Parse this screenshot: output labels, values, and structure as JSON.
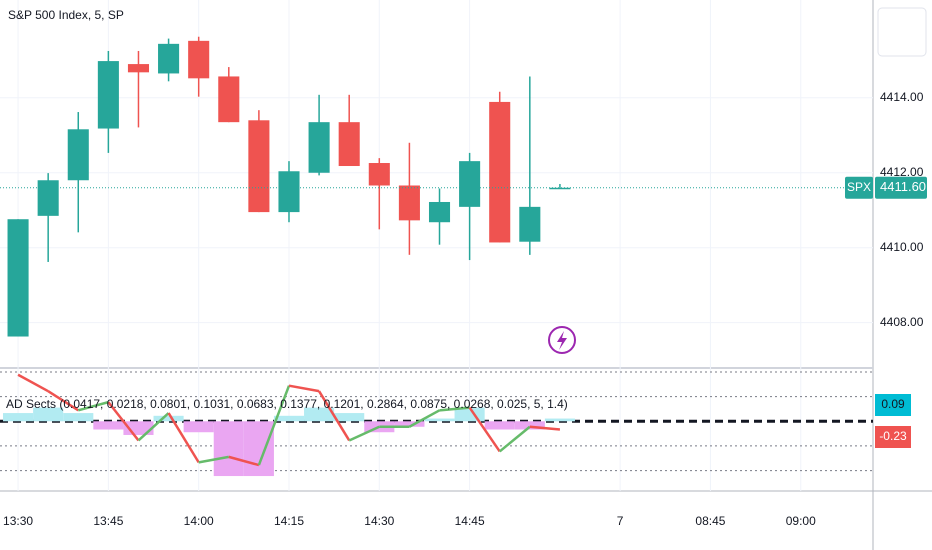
{
  "chart_data": {
    "type": "candlestick",
    "title": "S&P 500 Index, 5, SP",
    "symbol": "SPX",
    "last_price": {
      "value": 4411.6,
      "label": "4411.60"
    },
    "up_color": "#26a69a",
    "down_color": "#ef5350",
    "x": [
      0,
      1,
      2,
      3,
      4,
      5,
      6,
      7,
      8,
      9,
      10,
      11,
      12,
      13,
      14,
      15,
      16,
      17,
      18
    ],
    "open": [
      4407.63,
      4410.85,
      4411.8,
      4413.18,
      4414.9,
      4414.65,
      4415.52,
      4414.57,
      4413.4,
      4410.95,
      4412.0,
      4413.35,
      4412.26,
      4411.66,
      4410.68,
      4411.09,
      4413.89,
      4410.16,
      4411.6
    ],
    "high": [
      4410.76,
      4411.99,
      4413.62,
      4415.25,
      4415.25,
      4415.58,
      4415.63,
      4414.82,
      4413.67,
      4412.31,
      4414.08,
      4414.08,
      4412.39,
      4412.8,
      4411.58,
      4412.53,
      4414.16,
      4414.57,
      4411.7
    ],
    "low": [
      4407.63,
      4409.62,
      4410.41,
      4412.53,
      4413.21,
      4414.44,
      4414.03,
      4413.35,
      4410.95,
      4410.68,
      4411.93,
      4412.18,
      4410.49,
      4409.81,
      4410.08,
      4409.67,
      4410.14,
      4409.81,
      4411.6
    ],
    "close": [
      4410.76,
      4411.8,
      4413.16,
      4414.98,
      4414.68,
      4415.44,
      4414.52,
      4413.35,
      4410.95,
      4412.04,
      4413.35,
      4412.18,
      4411.66,
      4410.73,
      4411.22,
      4412.31,
      4410.14,
      4411.09,
      4411.6
    ],
    "xlim": [
      -0.6,
      28.4
    ],
    "xticks": [
      {
        "value": 0,
        "label": "13:30"
      },
      {
        "value": 3,
        "label": "13:45"
      },
      {
        "value": 6,
        "label": "14:00"
      },
      {
        "value": 9,
        "label": "14:15"
      },
      {
        "value": 12,
        "label": "14:30"
      },
      {
        "value": 15,
        "label": "14:45"
      },
      {
        "value": 20,
        "label": "7"
      },
      {
        "value": 23,
        "label": "08:45"
      },
      {
        "value": 26,
        "label": "09:00"
      }
    ],
    "ylim": [
      4406.87,
      4416.61
    ],
    "yticks": [
      {
        "value": 4408,
        "label": "4408.00"
      },
      {
        "value": 4410,
        "label": "4410.00"
      },
      {
        "value": 4412,
        "label": "4412.00"
      },
      {
        "value": 4414,
        "label": "4414.00"
      }
    ],
    "grid": true,
    "indicator": {
      "label": "AD Sects (0.0417, 0.0218, 0.0801, 0.1031, 0.0683, 0.1377, 0.1201, 0.2864, 0.0875, 0.0268, 0.025, 5, 1.4)",
      "ylim": [
        -0.24,
        0.18
      ],
      "levels": [
        0.18,
        0.09,
        0,
        -0.09,
        -0.18
      ],
      "histogram": [
        0.03,
        0.05,
        0.03,
        -0.03,
        -0.05,
        0.02,
        -0.04,
        -0.2,
        -0.2,
        0.02,
        0.05,
        0.03,
        -0.04,
        -0.02,
        0.01,
        0.05,
        -0.03,
        -0.03,
        0.01
      ],
      "hist_pos_color": "#b2ebf2",
      "hist_neg_color": "#eaa6f2",
      "line": [
        0.17,
        0.11,
        0.04,
        0.07,
        -0.07,
        0.03,
        -0.15,
        -0.13,
        -0.16,
        0.13,
        0.11,
        -0.07,
        -0.02,
        -0.02,
        0.04,
        0.05,
        -0.11,
        -0.02,
        -0.03
      ],
      "line_up_color": "#66bb6a",
      "line_down_color": "#ef5350",
      "tags": [
        {
          "value": 0.09,
          "label": "0.09",
          "color": "#00bcd4"
        },
        {
          "value": -0.23,
          "label": "-0.23",
          "color": "#ef5350"
        }
      ]
    }
  }
}
